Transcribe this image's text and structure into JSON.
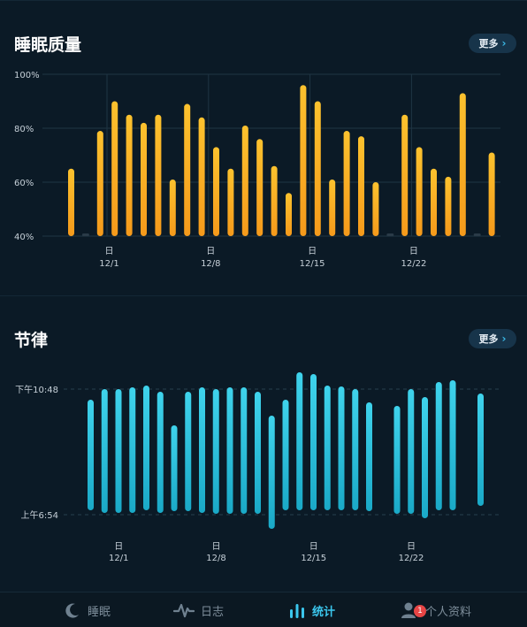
{
  "sleep_quality": {
    "title": "睡眠质量",
    "more_label": "更多",
    "chart_data": {
      "type": "bar",
      "ylim": [
        40,
        100
      ],
      "y_ticks": [
        "40%",
        "60%",
        "80%",
        "100%"
      ],
      "y_tick_values": [
        40,
        60,
        80,
        100
      ],
      "x_week_labels": [
        {
          "day": "日",
          "date": "12/1",
          "index": 3
        },
        {
          "day": "日",
          "date": "12/8",
          "index": 10
        },
        {
          "day": "日",
          "date": "12/15",
          "index": 17
        },
        {
          "day": "日",
          "date": "12/22",
          "index": 24
        }
      ],
      "values": [
        65,
        null,
        79,
        90,
        85,
        82,
        85,
        61,
        89,
        84,
        73,
        65,
        81,
        76,
        66,
        56,
        96,
        90,
        61,
        79,
        77,
        60,
        null,
        85,
        73,
        65,
        62,
        93,
        null,
        71
      ],
      "colors": {
        "top": "#fcc22e",
        "bottom": "#f59a1b",
        "missing": "#2a3b48"
      }
    }
  },
  "rhythm": {
    "title": "节律",
    "more_label": "更多",
    "chart_data": {
      "type": "bar",
      "y_ref_labels": [
        "下午10:48",
        "上午6:54"
      ],
      "x_week_labels": [
        {
          "day": "日",
          "date": "12/1",
          "index": 1
        },
        {
          "day": "日",
          "date": "12/8",
          "index": 8
        },
        {
          "day": "日",
          "date": "12/15",
          "index": 15
        },
        {
          "day": "日",
          "date": "12/22",
          "index": 22
        }
      ],
      "ranges": [
        [
          452,
          577
        ],
        [
          440,
          580
        ],
        [
          440,
          580
        ],
        [
          438,
          580
        ],
        [
          436,
          577
        ],
        [
          443,
          580
        ],
        [
          481,
          578
        ],
        [
          443,
          578
        ],
        [
          438,
          580
        ],
        [
          440,
          581
        ],
        [
          438,
          581
        ],
        [
          438,
          581
        ],
        [
          443,
          581
        ],
        [
          470,
          598
        ],
        [
          452,
          577
        ],
        [
          421,
          577
        ],
        [
          423,
          577
        ],
        [
          436,
          577
        ],
        [
          437,
          577
        ],
        [
          440,
          577
        ],
        [
          455,
          578
        ],
        null,
        [
          459,
          581
        ],
        [
          440,
          581
        ],
        [
          449,
          586
        ],
        [
          432,
          577
        ],
        [
          430,
          577
        ],
        null,
        [
          445,
          572
        ]
      ],
      "colors": {
        "top": "#3fd3ec",
        "bottom": "#1aa9c7"
      }
    }
  },
  "tabbar": {
    "tabs": [
      {
        "label": "睡眠",
        "icon": "moon-icon"
      },
      {
        "label": "日志",
        "icon": "pulse-icon"
      },
      {
        "label": "统计",
        "icon": "bar-chart-icon"
      },
      {
        "label": "个人资料",
        "icon": "person-icon"
      }
    ],
    "active_tab": "统计",
    "profile_badge": "1"
  }
}
